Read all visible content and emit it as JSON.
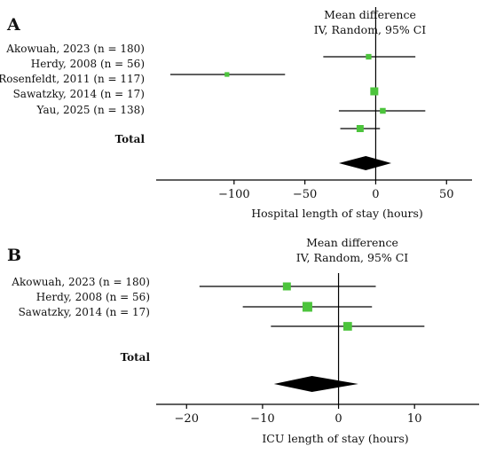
{
  "chart_data": [
    {
      "type": "forest",
      "panel_label": "A",
      "header": [
        "Mean difference",
        "IV, Random, 95% CI"
      ],
      "xlabel": "Hospital length of stay (hours)",
      "xlim": [
        -155,
        68
      ],
      "xticks": [
        -100,
        -50,
        0,
        50
      ],
      "xtick_labels": [
        "−100",
        "−50",
        "0",
        "50"
      ],
      "studies": [
        {
          "label": "Akowuah, 2023 (n = 180)",
          "md": -5,
          "lo": -37,
          "hi": 28,
          "weight": 0.45
        },
        {
          "label": "Herdy, 2008 (n = 56)",
          "md": -105,
          "lo": -145,
          "hi": -64,
          "weight": 0.25
        },
        {
          "label": "Rosenfeldt, 2011 (n = 117)",
          "md": -1,
          "lo": -3,
          "hi": 1,
          "weight": 1.0
        },
        {
          "label": "Sawatzky, 2014 (n = 17)",
          "md": 5,
          "lo": -26,
          "hi": 35,
          "weight": 0.5
        },
        {
          "label": "Yau, 2025 (n = 138)",
          "md": -11,
          "lo": -25,
          "hi": 3,
          "weight": 0.8
        }
      ],
      "total_label": "Total",
      "pooled": {
        "md": -7,
        "lo": -26,
        "hi": 11
      }
    },
    {
      "type": "forest",
      "panel_label": "B",
      "header": [
        "Mean difference",
        "IV, Random, 95% CI"
      ],
      "xlabel": "ICU length of stay (hours)",
      "xlim": [
        -24,
        18.5
      ],
      "xticks": [
        -20,
        -10,
        0,
        10
      ],
      "xtick_labels": [
        "−20",
        "−10",
        "0",
        "10"
      ],
      "studies": [
        {
          "label": "Akowuah, 2023 (n = 180)",
          "md": -6.8,
          "lo": -18.3,
          "hi": 4.9,
          "weight": 0.6
        },
        {
          "label": "Herdy, 2008 (n = 56)",
          "md": -4.1,
          "lo": -12.6,
          "hi": 4.4,
          "weight": 1.0
        },
        {
          "label": "Sawatzky, 2014 (n = 17)",
          "md": 1.2,
          "lo": -8.9,
          "hi": 11.3,
          "weight": 0.75
        }
      ],
      "total_label": "Total",
      "pooled": {
        "md": -3.5,
        "lo": -8.5,
        "hi": 2.6
      }
    }
  ]
}
